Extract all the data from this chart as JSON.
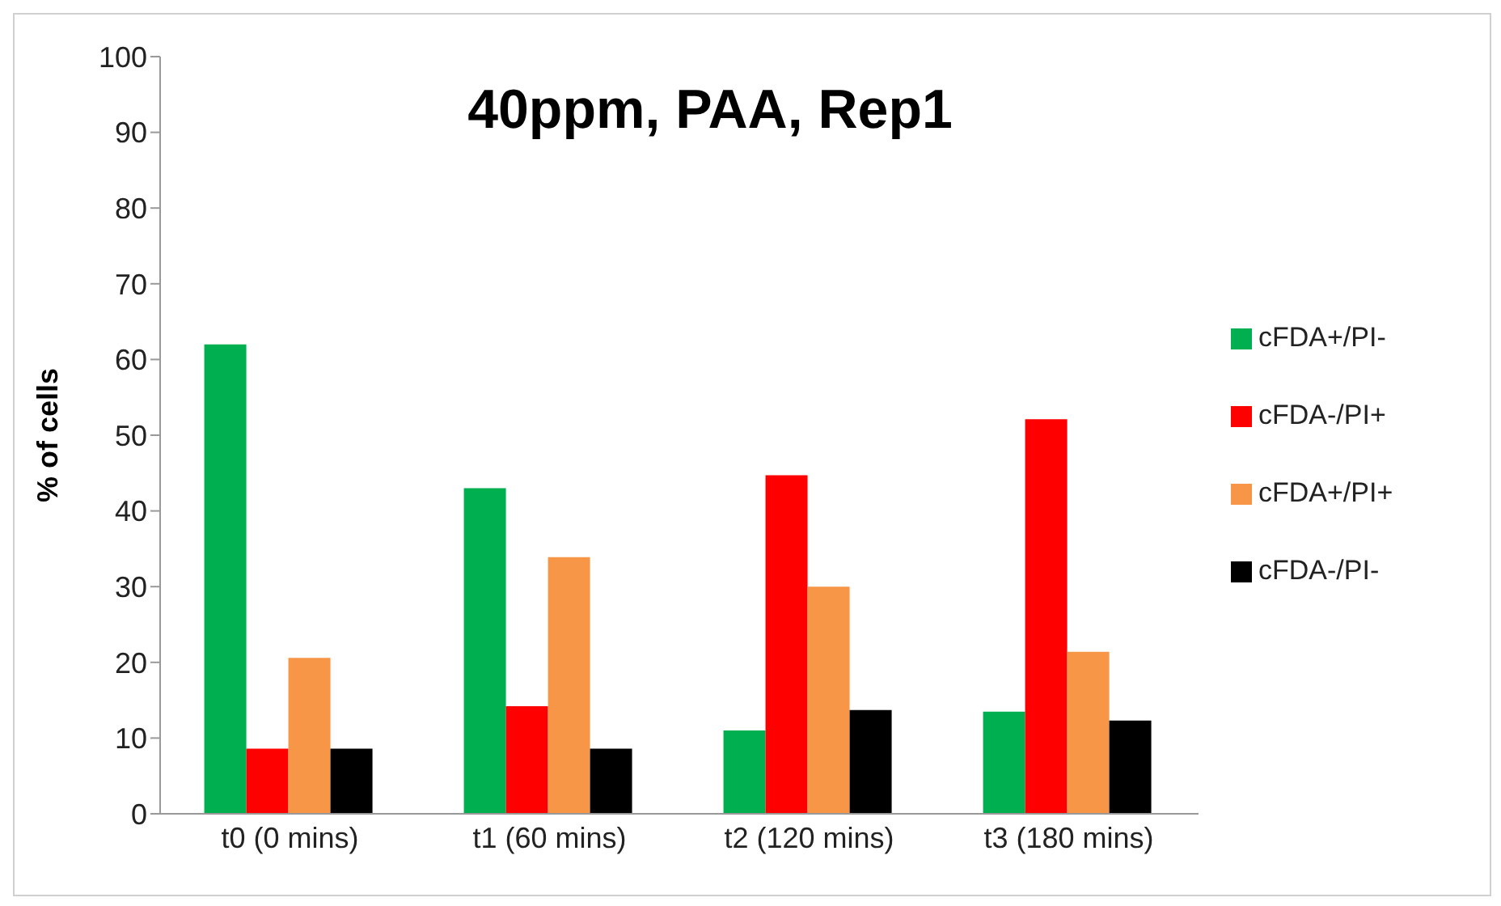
{
  "chart_data": {
    "type": "bar",
    "title": "40ppm, PAA, Rep1",
    "ylabel": "% of cells",
    "categories": [
      "t0 (0 mins)",
      "t1 (60 mins)",
      "t2 (120 mins)",
      "t3 (180 mins)"
    ],
    "series": [
      {
        "name": "cFDA+/PI-",
        "color": "#00b050",
        "values": [
          62,
          43,
          11,
          13.5
        ]
      },
      {
        "name": "cFDA-/PI+",
        "color": "#ff0000",
        "values": [
          8.6,
          14.2,
          44.7,
          52.1
        ]
      },
      {
        "name": "cFDA+/PI+",
        "color": "#f79646",
        "values": [
          20.6,
          33.9,
          30,
          21.4
        ]
      },
      {
        "name": "cFDA-/PI-",
        "color": "#000000",
        "values": [
          8.6,
          8.6,
          13.7,
          12.3
        ]
      }
    ],
    "ylim": [
      0,
      100
    ],
    "yticks": [
      0,
      10,
      20,
      30,
      40,
      50,
      60,
      70,
      80,
      90,
      100
    ],
    "grid": false,
    "legend": "right"
  }
}
